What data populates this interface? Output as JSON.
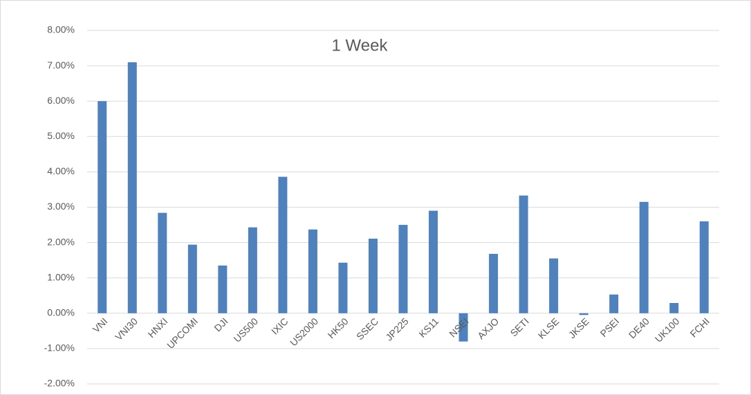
{
  "chart_data": {
    "type": "bar",
    "title": "1 Week",
    "categories": [
      "VNI",
      "VNI30",
      "HNXI",
      "UPCOMI",
      "DJI",
      "US500",
      "IXIC",
      "US2000",
      "HK50",
      "SSEC",
      "JP225",
      "KS11",
      "NSEI",
      "AXJO",
      "SETI",
      "KLSE",
      "JKSE",
      "PSEI",
      "DE40",
      "UK100",
      "FCHI"
    ],
    "values": [
      6.0,
      7.1,
      2.84,
      1.94,
      1.35,
      2.43,
      3.86,
      2.37,
      1.43,
      2.11,
      2.5,
      2.9,
      -0.8,
      1.68,
      3.33,
      1.55,
      -0.05,
      0.53,
      3.15,
      0.29,
      2.6
    ],
    "color": "#4f81bd",
    "ylim": [
      -2,
      8
    ],
    "yticks": [
      {
        "value": -2,
        "label": "-2.00%"
      },
      {
        "value": -1,
        "label": "-1.00%"
      },
      {
        "value": 0,
        "label": "0.00%"
      },
      {
        "value": 1,
        "label": "1.00%"
      },
      {
        "value": 2,
        "label": "2.00%"
      },
      {
        "value": 3,
        "label": "3.00%"
      },
      {
        "value": 4,
        "label": "4.00%"
      },
      {
        "value": 5,
        "label": "5.00%"
      },
      {
        "value": 6,
        "label": "6.00%"
      },
      {
        "value": 7,
        "label": "7.00%"
      },
      {
        "value": 8,
        "label": "8.00%"
      }
    ],
    "grid": true
  }
}
